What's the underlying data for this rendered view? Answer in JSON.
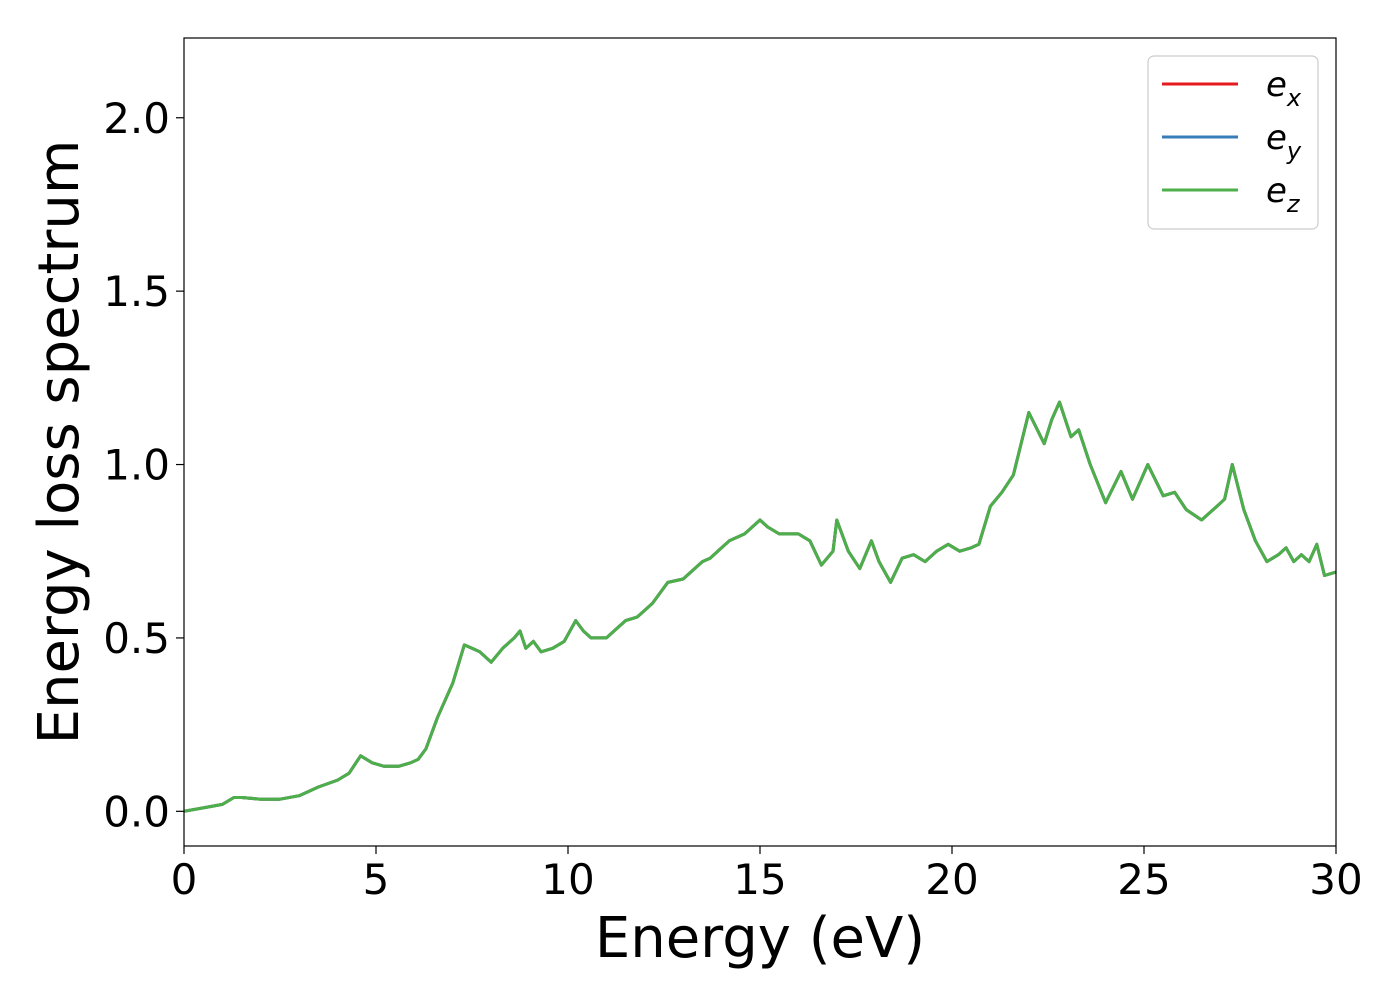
{
  "chart_data": {
    "type": "line",
    "title": "",
    "xlabel": "Energy (eV)",
    "ylabel": "Energy loss spectrum",
    "xlim": [
      0,
      30
    ],
    "ylim": [
      -0.1,
      2.23
    ],
    "xticks": [
      0,
      5,
      10,
      15,
      20,
      25,
      30
    ],
    "xtick_labels": [
      "0",
      "5",
      "10",
      "15",
      "20",
      "25",
      "30"
    ],
    "yticks": [
      0.0,
      0.5,
      1.0,
      1.5,
      2.0
    ],
    "ytick_labels": [
      "0.0",
      "0.5",
      "1.0",
      "1.5",
      "2.0"
    ],
    "grid": false,
    "legend": "top-right",
    "series": [
      {
        "name": "e_x",
        "label_base": "e",
        "label_sub": "x",
        "color": "#e41a1c",
        "x": [
          0,
          0.5,
          1.0,
          1.3,
          1.5,
          2.0,
          2.5,
          3.0,
          3.5,
          4.0,
          4.3,
          4.6,
          4.9,
          5.2,
          5.6,
          5.9,
          6.1,
          6.3,
          6.6,
          7.0,
          7.3,
          7.5,
          7.7,
          8.0,
          8.3,
          8.6,
          8.75,
          8.9,
          9.1,
          9.3,
          9.6,
          9.9,
          10.2,
          10.4,
          10.6,
          11.0,
          11.3,
          11.5,
          11.8,
          12.0,
          12.2,
          12.4,
          12.6,
          13.0,
          13.2,
          13.5,
          13.7,
          14.0,
          14.2,
          14.6,
          15.0,
          15.2,
          15.5,
          15.8,
          16.0,
          16.3,
          16.6,
          16.9,
          17.0,
          17.3,
          17.6,
          17.9,
          18.1,
          18.4,
          18.7,
          19.0,
          19.3,
          19.6,
          19.9,
          20.2,
          20.5,
          20.7,
          21.0,
          21.3,
          21.6,
          22.0,
          22.4,
          22.6,
          22.8,
          23.1,
          23.3,
          23.6,
          24.0,
          24.4,
          24.7,
          25.1,
          25.5,
          25.8,
          26.1,
          26.5,
          26.9,
          27.1,
          27.3,
          27.6,
          27.9,
          28.2,
          28.5,
          28.7,
          28.9,
          29.1,
          29.3,
          29.5,
          29.7,
          30.0
        ],
        "y": [
          0.0,
          0.01,
          0.02,
          0.04,
          0.04,
          0.035,
          0.035,
          0.045,
          0.07,
          0.09,
          0.11,
          0.16,
          0.14,
          0.13,
          0.13,
          0.14,
          0.15,
          0.18,
          0.27,
          0.37,
          0.48,
          0.47,
          0.46,
          0.43,
          0.47,
          0.5,
          0.52,
          0.47,
          0.49,
          0.46,
          0.47,
          0.49,
          0.55,
          0.52,
          0.5,
          0.5,
          0.53,
          0.55,
          0.56,
          0.58,
          0.6,
          0.63,
          0.66,
          0.67,
          0.69,
          0.72,
          0.73,
          0.76,
          0.78,
          0.8,
          0.84,
          0.82,
          0.8,
          0.8,
          0.8,
          0.78,
          0.71,
          0.75,
          0.84,
          0.75,
          0.7,
          0.78,
          0.72,
          0.66,
          0.73,
          0.74,
          0.72,
          0.75,
          0.77,
          0.75,
          0.76,
          0.77,
          0.88,
          0.92,
          0.97,
          1.15,
          1.06,
          1.13,
          1.18,
          1.08,
          1.1,
          1.0,
          0.89,
          0.98,
          0.9,
          1.0,
          0.91,
          0.92,
          0.87,
          0.84,
          0.88,
          0.9,
          1.0,
          0.87,
          0.78,
          0.72,
          0.74,
          0.76,
          0.72,
          0.74,
          0.72,
          0.77,
          0.68,
          0.69
        ]
      },
      {
        "name": "e_y",
        "label_base": "e",
        "label_sub": "y",
        "color": "#377eb8",
        "x": [
          0,
          0.5,
          1.0,
          1.3,
          1.5,
          2.0,
          2.5,
          3.0,
          3.5,
          4.0,
          4.3,
          4.6,
          4.9,
          5.2,
          5.6,
          5.9,
          6.1,
          6.3,
          6.6,
          7.0,
          7.3,
          7.5,
          7.7,
          8.0,
          8.3,
          8.6,
          8.75,
          8.9,
          9.1,
          9.3,
          9.6,
          9.9,
          10.2,
          10.4,
          10.6,
          11.0,
          11.3,
          11.5,
          11.8,
          12.0,
          12.2,
          12.4,
          12.6,
          13.0,
          13.2,
          13.5,
          13.7,
          14.0,
          14.2,
          14.6,
          15.0,
          15.2,
          15.5,
          15.8,
          16.0,
          16.3,
          16.6,
          16.9,
          17.0,
          17.3,
          17.6,
          17.9,
          18.1,
          18.4,
          18.7,
          19.0,
          19.3,
          19.6,
          19.9,
          20.2,
          20.5,
          20.7,
          21.0,
          21.3,
          21.6,
          22.0,
          22.4,
          22.6,
          22.8,
          23.1,
          23.3,
          23.6,
          24.0,
          24.4,
          24.7,
          25.1,
          25.5,
          25.8,
          26.1,
          26.5,
          26.9,
          27.1,
          27.3,
          27.6,
          27.9,
          28.2,
          28.5,
          28.7,
          28.9,
          29.1,
          29.3,
          29.5,
          29.7,
          30.0
        ],
        "y": [
          0.0,
          0.01,
          0.02,
          0.04,
          0.04,
          0.035,
          0.035,
          0.045,
          0.07,
          0.09,
          0.11,
          0.16,
          0.14,
          0.13,
          0.13,
          0.14,
          0.15,
          0.18,
          0.27,
          0.37,
          0.48,
          0.47,
          0.46,
          0.43,
          0.47,
          0.5,
          0.52,
          0.47,
          0.49,
          0.46,
          0.47,
          0.49,
          0.55,
          0.52,
          0.5,
          0.5,
          0.53,
          0.55,
          0.56,
          0.58,
          0.6,
          0.63,
          0.66,
          0.67,
          0.69,
          0.72,
          0.73,
          0.76,
          0.78,
          0.8,
          0.84,
          0.82,
          0.8,
          0.8,
          0.8,
          0.78,
          0.71,
          0.75,
          0.84,
          0.75,
          0.7,
          0.78,
          0.72,
          0.66,
          0.73,
          0.74,
          0.72,
          0.75,
          0.77,
          0.75,
          0.76,
          0.77,
          0.88,
          0.92,
          0.97,
          1.15,
          1.06,
          1.13,
          1.18,
          1.08,
          1.1,
          1.0,
          0.89,
          0.98,
          0.9,
          1.0,
          0.91,
          0.92,
          0.87,
          0.84,
          0.88,
          0.9,
          1.0,
          0.87,
          0.78,
          0.72,
          0.74,
          0.76,
          0.72,
          0.74,
          0.72,
          0.77,
          0.68,
          0.69
        ]
      },
      {
        "name": "e_z",
        "label_base": "e",
        "label_sub": "z",
        "color": "#4daf4a",
        "x": [
          0,
          0.5,
          1.0,
          1.3,
          1.5,
          2.0,
          2.5,
          3.0,
          3.5,
          4.0,
          4.3,
          4.6,
          4.9,
          5.2,
          5.6,
          5.9,
          6.1,
          6.3,
          6.6,
          7.0,
          7.3,
          7.5,
          7.7,
          8.0,
          8.3,
          8.6,
          8.75,
          8.9,
          9.1,
          9.3,
          9.6,
          9.9,
          10.2,
          10.4,
          10.6,
          11.0,
          11.3,
          11.5,
          11.8,
          12.0,
          12.2,
          12.4,
          12.6,
          13.0,
          13.2,
          13.5,
          13.7,
          14.0,
          14.2,
          14.6,
          15.0,
          15.2,
          15.5,
          15.8,
          16.0,
          16.3,
          16.6,
          16.9,
          17.0,
          17.3,
          17.6,
          17.9,
          18.1,
          18.4,
          18.7,
          19.0,
          19.3,
          19.6,
          19.9,
          20.2,
          20.5,
          20.7,
          21.0,
          21.3,
          21.6,
          22.0,
          22.4,
          22.6,
          22.8,
          23.1,
          23.3,
          23.6,
          24.0,
          24.4,
          24.7,
          25.1,
          25.5,
          25.8,
          26.1,
          26.5,
          26.9,
          27.1,
          27.3,
          27.6,
          27.9,
          28.2,
          28.5,
          28.7,
          28.9,
          29.1,
          29.3,
          29.5,
          29.7,
          30.0
        ],
        "y": [
          0.0,
          0.01,
          0.02,
          0.04,
          0.04,
          0.035,
          0.035,
          0.045,
          0.07,
          0.09,
          0.11,
          0.16,
          0.14,
          0.13,
          0.13,
          0.14,
          0.15,
          0.18,
          0.27,
          0.37,
          0.48,
          0.47,
          0.46,
          0.43,
          0.47,
          0.5,
          0.52,
          0.47,
          0.49,
          0.46,
          0.47,
          0.49,
          0.55,
          0.52,
          0.5,
          0.5,
          0.53,
          0.55,
          0.56,
          0.58,
          0.6,
          0.63,
          0.66,
          0.67,
          0.69,
          0.72,
          0.73,
          0.76,
          0.78,
          0.8,
          0.84,
          0.82,
          0.8,
          0.8,
          0.8,
          0.78,
          0.71,
          0.75,
          0.84,
          0.75,
          0.7,
          0.78,
          0.72,
          0.66,
          0.73,
          0.74,
          0.72,
          0.75,
          0.77,
          0.75,
          0.76,
          0.77,
          0.88,
          0.92,
          0.97,
          1.15,
          1.06,
          1.13,
          1.18,
          1.08,
          1.1,
          1.0,
          0.89,
          0.98,
          0.9,
          1.0,
          0.91,
          0.92,
          0.87,
          0.84,
          0.88,
          0.9,
          1.0,
          0.87,
          0.78,
          0.72,
          0.74,
          0.76,
          0.72,
          0.74,
          0.72,
          0.77,
          0.68,
          0.69
        ]
      }
    ]
  }
}
